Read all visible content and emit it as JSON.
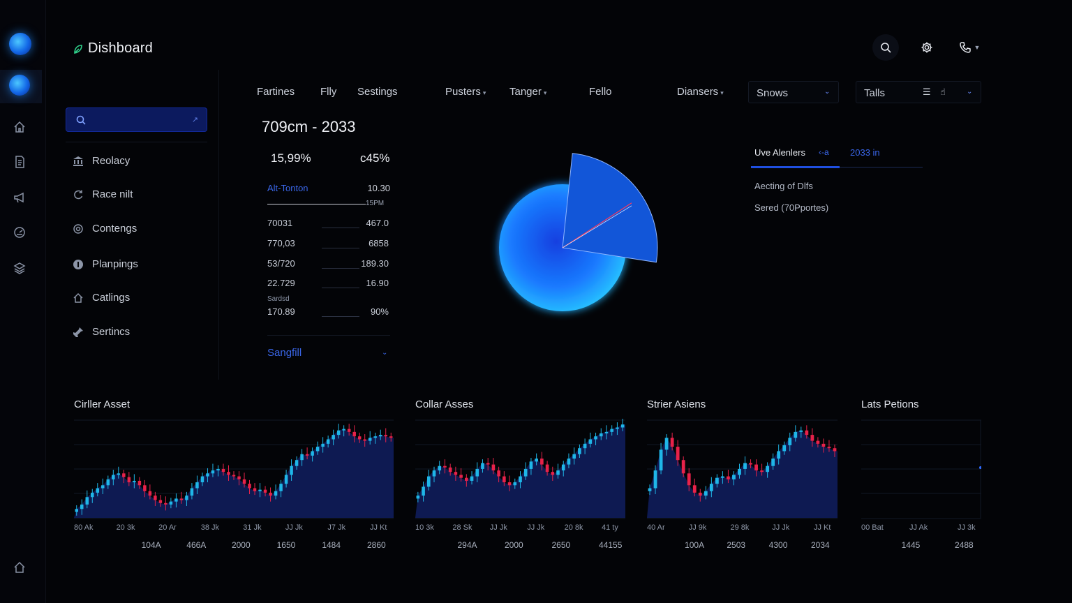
{
  "header": {
    "title": "Dishboard"
  },
  "sidebar": {
    "items": [
      {
        "label": "Reolacy",
        "icon": "bank-icon"
      },
      {
        "label": "Race nilt",
        "icon": "refresh-icon"
      },
      {
        "label": "Contengs",
        "icon": "settings-icon"
      },
      {
        "label": "Planpings",
        "icon": "info-icon"
      },
      {
        "label": "Catlings",
        "icon": "home-icon"
      },
      {
        "label": "Sertincs",
        "icon": "tools-icon"
      }
    ]
  },
  "tabs": {
    "items": [
      "Fartines",
      "Flly",
      "Sestings",
      "Pusters",
      "Tanger",
      "Fello",
      "Diansers"
    ],
    "shows_label": "Snows",
    "tails_label": "Talls"
  },
  "stats": {
    "range": "709cm - 2033",
    "pct_left": "15,99%",
    "pct_right": "c45%",
    "head_label": "Alt-Tonton",
    "head_value": "10.30",
    "line_value": "15PM",
    "rows": [
      {
        "c1": "70031",
        "c2": "467.0",
        "sub": ""
      },
      {
        "c1": "770,03",
        "c2": "6858",
        "sub": ""
      },
      {
        "c1": "53/720",
        "c2": "189.30",
        "sub": ""
      },
      {
        "c1": "22.729",
        "c2": "16.90",
        "sub": ""
      },
      {
        "c1": "170.89",
        "c2": "90%",
        "sub": "Sardsd"
      }
    ],
    "footer_label": "Sangfill"
  },
  "pie_data": {
    "type": "pie",
    "slices": [
      {
        "value": 82,
        "color": "#1a7bff"
      },
      {
        "value": 18,
        "color": "#1256d8"
      }
    ]
  },
  "live": {
    "tab1": "Uve Alenlers",
    "tab2": "‹-a",
    "tab3": "2033 in",
    "items": [
      "Aecting of Dlfs",
      "Sered (70Pportes)"
    ]
  },
  "chart_data": [
    {
      "type": "candlestick",
      "title": "Cirller Asset",
      "x_ticks": [
        "80 Ak",
        "20 3k",
        "20 Ar",
        "38 Jk",
        "31 Jk",
        "JJ Jk",
        "J7 Jk",
        "JJ Kt"
      ],
      "x_values": [
        "104A",
        "466A",
        "2000",
        "1650",
        "1484",
        "2860"
      ],
      "closes": [
        12,
        18,
        28,
        34,
        40,
        44,
        52,
        58,
        60,
        55,
        48,
        50,
        44,
        36,
        30,
        24,
        20,
        18,
        22,
        26,
        24,
        30,
        40,
        48,
        56,
        60,
        64,
        66,
        62,
        58,
        56,
        52,
        46,
        40,
        36,
        38,
        34,
        30,
        36,
        46,
        58,
        70,
        78,
        86,
        84,
        90,
        96,
        100,
        106,
        112,
        118,
        120,
        116,
        110,
        106,
        104,
        108,
        110,
        112,
        110,
        108
      ]
    },
    {
      "type": "candlestick",
      "title": "Collar Asses",
      "x_ticks": [
        "10 3k",
        "28 Sk",
        "JJ Jk",
        "JJ Jk",
        "20 8k",
        "41 ty"
      ],
      "x_values": [
        "294A",
        "2000",
        "2650",
        "44155"
      ],
      "closes": [
        30,
        42,
        56,
        64,
        70,
        68,
        62,
        58,
        54,
        50,
        56,
        66,
        74,
        72,
        64,
        56,
        48,
        44,
        48,
        56,
        66,
        76,
        80,
        72,
        62,
        58,
        64,
        72,
        80,
        86,
        94,
        100,
        106,
        110,
        114,
        116,
        120,
        122,
        126
      ]
    },
    {
      "type": "candlestick",
      "title": "Strier Asiens",
      "x_ticks": [
        "40 Ar",
        "JJ 9k",
        "29 8k",
        "JJ Jk",
        "JJ Kt"
      ],
      "x_values": [
        "100A",
        "2503",
        "4300",
        "2034"
      ],
      "closes": [
        40,
        64,
        92,
        108,
        96,
        78,
        60,
        44,
        34,
        30,
        36,
        46,
        54,
        56,
        52,
        58,
        66,
        74,
        72,
        64,
        62,
        70,
        80,
        90,
        98,
        108,
        116,
        118,
        112,
        104,
        100,
        96,
        94,
        90
      ]
    },
    {
      "type": "line",
      "title": "Lats Petions",
      "x_ticks": [
        "00 Bat",
        "JJ Ak",
        "JJ 3k"
      ],
      "x_values": [
        "1445",
        "2488"
      ],
      "closes": []
    }
  ]
}
